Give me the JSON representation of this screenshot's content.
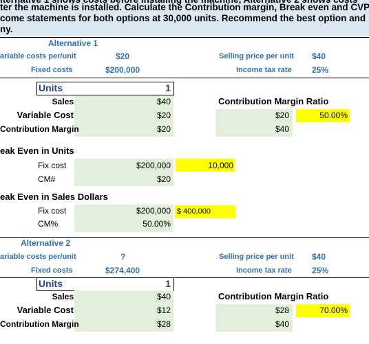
{
  "header": {
    "lines": [
      "lternative 1 shows costs before installing the machine, Alternative 2 shows costs",
      "ter the machine is installed. Calculate the Contribution margin, Break even and CVP",
      "come statements for both options at 30,000 units. Recommend the best option and",
      "ny."
    ]
  },
  "alternative_1": {
    "title": "Alternative 1",
    "variable_cost_label": "ariable costs per/unit",
    "variable_cost": "$20",
    "selling_price_label": "Selling price per unit",
    "selling_price": "$40",
    "fixed_costs_label": "Fixed costs",
    "fixed_costs": "$200,000",
    "tax_rate_label": "Income tax rate",
    "tax_rate": "25%"
  },
  "units_1": {
    "label": "Units",
    "value": "1"
  },
  "cm_1": {
    "sales_label": "Sales",
    "sales": "$40",
    "variable_cost_label": "Variable Cost",
    "variable_cost": "$20",
    "cm_label": "Contribution Margin",
    "cm": "$20",
    "ratio_title": "Contribution Margin Ratio",
    "ratio_cm": "$20",
    "ratio": "50.00%",
    "ratio_sales": "$40"
  },
  "break_even_units": {
    "title": "eak Even in Units",
    "fix_cost_label": "Fix cost",
    "fix_cost": "$200,000",
    "result": "10,000",
    "cm_label": "CM#",
    "cm": "$20"
  },
  "break_even_sales": {
    "title": "eak Even in Sales Dollars",
    "fix_cost_label": "Fix cost",
    "fix_cost": "$200,000",
    "result": "$ 400,000",
    "cm_label": "CM%",
    "cm": "50.00%"
  },
  "alternative_2": {
    "title": "Alternative 2",
    "variable_cost_label": "ariable costs per/unit",
    "variable_cost": "?",
    "selling_price_label": "Selling price per unit",
    "selling_price": "$40",
    "fixed_costs_label": "Fixed costs",
    "fixed_costs": "$274,400",
    "tax_rate_label": "Income tax rate",
    "tax_rate": "25%"
  },
  "units_2": {
    "label": "Units",
    "value": "1"
  },
  "cm_2": {
    "sales_label": "Sales",
    "sales": "$40",
    "variable_cost_label": "Variable Cost",
    "variable_cost": "$12",
    "cm_label": "Contribution Margin",
    "cm": "$28",
    "ratio_title": "Contribution Margin Ratio",
    "ratio_cm": "$28",
    "ratio": "70.00%",
    "ratio_sales": "$40"
  }
}
